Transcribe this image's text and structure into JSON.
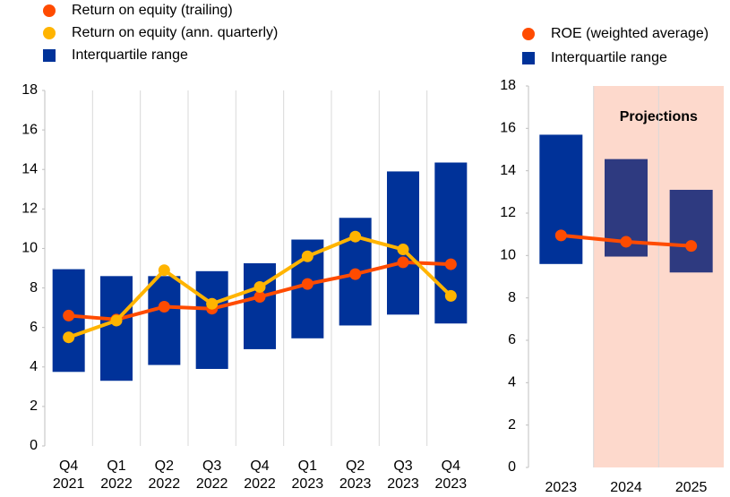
{
  "chart_data": [
    {
      "type": "bar_line",
      "categories": [
        [
          "Q4",
          "2021"
        ],
        [
          "Q1",
          "2022"
        ],
        [
          "Q2",
          "2022"
        ],
        [
          "Q3",
          "2022"
        ],
        [
          "Q4",
          "2022"
        ],
        [
          "Q1",
          "2023"
        ],
        [
          "Q2",
          "2023"
        ],
        [
          "Q3",
          "2023"
        ],
        [
          "Q4",
          "2023"
        ]
      ],
      "ylim": [
        0,
        18
      ],
      "yticks": [
        0,
        2,
        4,
        6,
        8,
        10,
        12,
        14,
        16,
        18
      ],
      "series": [
        {
          "name": "Return on equity (trailing)",
          "kind": "line",
          "color": "#ff4b00",
          "values": [
            6.6,
            6.4,
            7.05,
            6.95,
            7.55,
            8.2,
            8.7,
            9.3,
            9.2
          ]
        },
        {
          "name": "Return on equity (ann. quarterly)",
          "kind": "line",
          "color": "#ffb400",
          "values": [
            5.5,
            6.35,
            8.9,
            7.2,
            8.05,
            9.6,
            10.6,
            9.95,
            7.6
          ]
        },
        {
          "name": "Interquartile range",
          "kind": "range",
          "color": "#003299",
          "low": [
            3.75,
            3.3,
            4.1,
            3.9,
            4.9,
            5.45,
            6.1,
            6.65,
            6.2
          ],
          "high": [
            8.95,
            8.6,
            8.6,
            8.85,
            9.25,
            10.45,
            11.55,
            13.9,
            14.35
          ]
        }
      ]
    },
    {
      "type": "bar_line",
      "categories": [
        [
          "2023"
        ],
        [
          "2024"
        ],
        [
          "2025"
        ]
      ],
      "ylim": [
        0,
        18
      ],
      "yticks": [
        0,
        2,
        4,
        6,
        8,
        10,
        12,
        14,
        16,
        18
      ],
      "annotation": {
        "text": "Projections",
        "from_category": 1,
        "color": "#fdd9cc"
      },
      "series": [
        {
          "name": "ROE (weighted average)",
          "kind": "line",
          "color": "#ff4b00",
          "values": [
            10.95,
            10.65,
            10.45
          ]
        },
        {
          "name": "Interquartile range",
          "kind": "range",
          "color": "#003299",
          "bar_colors": [
            "#003299",
            "#2e3a80",
            "#2e3a80"
          ],
          "low": [
            9.6,
            9.95,
            9.2
          ],
          "high": [
            15.7,
            14.55,
            13.1
          ]
        }
      ]
    }
  ]
}
